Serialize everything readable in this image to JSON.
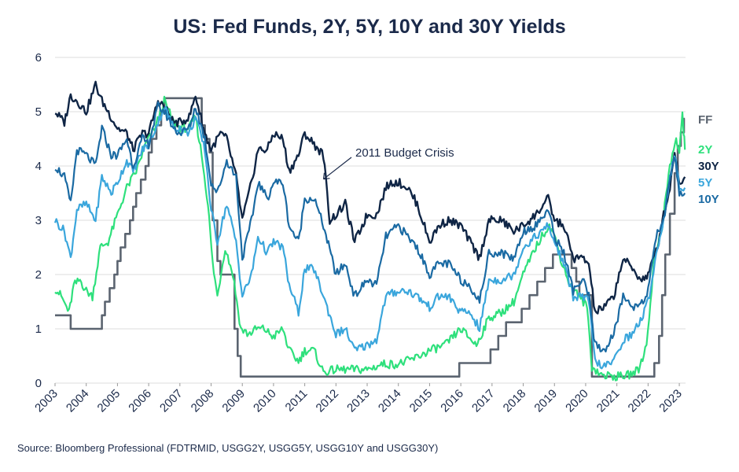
{
  "title": "US: Fed Funds, 2Y, 5Y, 10Y and 30Y Yields",
  "source": "Source: Bloomberg Professional (FDTRMID, USGG2Y, USGG5Y, USGG10Y and USGG30Y)",
  "colors": {
    "ff": "#5b6470",
    "y2": "#2ee07c",
    "y5": "#3aa6dc",
    "y10": "#1a6aa3",
    "y30": "#0f2545",
    "grid": "#dedede"
  },
  "chart_data": {
    "type": "line",
    "title": "US: Fed Funds, 2Y, 5Y, 10Y and 30Y Yields",
    "xlabel": "",
    "ylabel": "",
    "xlim": [
      2003,
      2023.2
    ],
    "ylim": [
      0,
      6
    ],
    "yticks": [
      0,
      1,
      2,
      3,
      4,
      5,
      6
    ],
    "xticks": [
      2003,
      2004,
      2005,
      2006,
      2007,
      2008,
      2009,
      2010,
      2011,
      2012,
      2013,
      2014,
      2015,
      2016,
      2017,
      2018,
      2019,
      2020,
      2021,
      2022,
      2023
    ],
    "grid": "horizontal",
    "series": [
      {
        "name": "FF",
        "key": "ff",
        "step": true,
        "x": [
          2003.0,
          2003.5,
          2004.5,
          2004.6,
          2004.75,
          2004.9,
          2005.0,
          2005.1,
          2005.25,
          2005.4,
          2005.5,
          2005.6,
          2005.75,
          2005.9,
          2006.0,
          2006.1,
          2006.25,
          2006.4,
          2006.5,
          2007.7,
          2007.8,
          2007.95,
          2008.05,
          2008.2,
          2008.3,
          2008.75,
          2008.85,
          2008.95,
          2015.95,
          2016.95,
          2017.2,
          2017.45,
          2017.95,
          2018.2,
          2018.45,
          2018.7,
          2018.95,
          2019.55,
          2019.7,
          2019.8,
          2020.2,
          2022.2,
          2022.35,
          2022.45,
          2022.55,
          2022.7,
          2022.85,
          2022.95,
          2023.05,
          2023.15
        ],
        "values": [
          1.25,
          1.0,
          1.25,
          1.5,
          1.75,
          2.0,
          2.25,
          2.5,
          2.75,
          3.0,
          3.25,
          3.5,
          3.75,
          4.0,
          4.25,
          4.5,
          4.75,
          5.0,
          5.25,
          4.75,
          4.5,
          4.25,
          3.0,
          2.25,
          2.0,
          1.0,
          0.5,
          0.12,
          0.37,
          0.62,
          0.87,
          1.12,
          1.37,
          1.62,
          1.87,
          2.12,
          2.37,
          2.12,
          1.87,
          1.62,
          0.12,
          0.37,
          0.87,
          1.62,
          2.37,
          3.12,
          3.87,
          4.37,
          4.62,
          4.87
        ]
      },
      {
        "name": "2Y",
        "key": "y2",
        "x": [
          2003.0,
          2003.2,
          2003.45,
          2003.6,
          2003.8,
          2004.0,
          2004.2,
          2004.45,
          2004.7,
          2005.0,
          2005.3,
          2005.6,
          2005.9,
          2006.2,
          2006.5,
          2006.8,
          2007.0,
          2007.3,
          2007.5,
          2007.7,
          2007.9,
          2008.05,
          2008.2,
          2008.45,
          2008.7,
          2008.95,
          2009.2,
          2009.45,
          2009.7,
          2010.0,
          2010.3,
          2010.5,
          2010.8,
          2011.0,
          2011.3,
          2011.6,
          2012.0,
          2012.5,
          2013.0,
          2013.5,
          2014.0,
          2014.5,
          2015.0,
          2015.5,
          2016.0,
          2016.5,
          2016.9,
          2017.3,
          2017.7,
          2018.0,
          2018.4,
          2018.8,
          2018.95,
          2019.2,
          2019.5,
          2019.8,
          2020.05,
          2020.2,
          2020.5,
          2021.0,
          2021.4,
          2021.7,
          2021.95,
          2022.2,
          2022.45,
          2022.7,
          2022.9,
          2023.0,
          2023.1,
          2023.18
        ],
        "values": [
          1.75,
          1.6,
          1.3,
          1.8,
          1.9,
          1.7,
          1.6,
          2.5,
          2.6,
          3.1,
          3.6,
          3.9,
          4.4,
          4.7,
          5.2,
          4.8,
          4.7,
          4.7,
          4.9,
          4.2,
          3.3,
          2.2,
          1.6,
          2.5,
          2.0,
          1.0,
          0.9,
          1.0,
          1.0,
          0.85,
          1.0,
          0.6,
          0.4,
          0.6,
          0.6,
          0.2,
          0.25,
          0.25,
          0.25,
          0.35,
          0.35,
          0.45,
          0.6,
          0.7,
          1.0,
          0.7,
          1.2,
          1.3,
          1.5,
          2.0,
          2.5,
          2.9,
          2.8,
          2.3,
          1.8,
          1.6,
          1.4,
          0.3,
          0.15,
          0.12,
          0.15,
          0.25,
          0.7,
          2.3,
          2.9,
          4.0,
          4.5,
          4.2,
          5.0,
          4.3
        ]
      },
      {
        "name": "30Y",
        "key": "y30",
        "x": [
          2003.0,
          2003.3,
          2003.5,
          2003.7,
          2004.0,
          2004.3,
          2004.5,
          2004.8,
          2005.0,
          2005.3,
          2005.5,
          2005.8,
          2006.0,
          2006.3,
          2006.5,
          2006.8,
          2007.0,
          2007.3,
          2007.5,
          2007.8,
          2008.0,
          2008.3,
          2008.5,
          2008.8,
          2009.0,
          2009.3,
          2009.5,
          2009.8,
          2010.0,
          2010.3,
          2010.5,
          2010.8,
          2011.0,
          2011.3,
          2011.6,
          2011.8,
          2012.0,
          2012.3,
          2012.6,
          2013.0,
          2013.3,
          2013.6,
          2013.8,
          2014.0,
          2014.3,
          2014.6,
          2015.0,
          2015.3,
          2015.6,
          2016.0,
          2016.3,
          2016.6,
          2016.9,
          2017.3,
          2017.7,
          2018.0,
          2018.4,
          2018.8,
          2019.0,
          2019.3,
          2019.6,
          2019.9,
          2020.1,
          2020.3,
          2020.6,
          2020.9,
          2021.2,
          2021.5,
          2021.8,
          2022.0,
          2022.3,
          2022.5,
          2022.7,
          2022.85,
          2023.0,
          2023.18
        ],
        "values": [
          5.0,
          4.8,
          5.3,
          5.2,
          5.0,
          5.5,
          5.2,
          4.9,
          4.7,
          4.6,
          4.3,
          4.6,
          4.6,
          5.2,
          5.1,
          4.8,
          4.8,
          4.9,
          5.3,
          4.6,
          4.3,
          4.6,
          4.5,
          3.8,
          3.0,
          3.7,
          4.3,
          4.3,
          4.6,
          4.5,
          3.9,
          4.2,
          4.6,
          4.4,
          4.2,
          3.0,
          3.1,
          3.3,
          2.6,
          3.1,
          3.1,
          3.6,
          3.7,
          3.7,
          3.6,
          3.3,
          2.6,
          2.9,
          3.0,
          2.9,
          2.6,
          2.3,
          3.0,
          3.0,
          2.8,
          2.9,
          3.1,
          3.4,
          3.0,
          2.9,
          2.3,
          2.3,
          2.2,
          1.3,
          1.4,
          1.6,
          2.3,
          2.1,
          1.9,
          2.0,
          2.5,
          3.1,
          3.6,
          4.3,
          3.7,
          3.8
        ]
      },
      {
        "name": "5Y",
        "key": "y5",
        "x": [
          2003.0,
          2003.3,
          2003.5,
          2003.7,
          2004.0,
          2004.3,
          2004.5,
          2004.8,
          2005.0,
          2005.3,
          2005.5,
          2005.8,
          2006.0,
          2006.3,
          2006.5,
          2006.8,
          2007.0,
          2007.3,
          2007.5,
          2007.8,
          2008.0,
          2008.2,
          2008.5,
          2008.8,
          2009.0,
          2009.3,
          2009.5,
          2009.8,
          2010.0,
          2010.3,
          2010.5,
          2010.8,
          2011.0,
          2011.3,
          2011.6,
          2012.0,
          2012.3,
          2012.6,
          2013.0,
          2013.3,
          2013.6,
          2014.0,
          2014.3,
          2014.6,
          2015.0,
          2015.3,
          2015.6,
          2016.0,
          2016.3,
          2016.6,
          2016.9,
          2017.3,
          2017.7,
          2018.0,
          2018.4,
          2018.8,
          2019.0,
          2019.3,
          2019.6,
          2019.9,
          2020.1,
          2020.3,
          2020.6,
          2020.9,
          2021.2,
          2021.5,
          2021.8,
          2022.0,
          2022.3,
          2022.5,
          2022.7,
          2022.85,
          2023.0,
          2023.18
        ],
        "values": [
          3.0,
          2.8,
          2.3,
          3.2,
          3.3,
          3.0,
          3.8,
          3.5,
          3.7,
          4.1,
          3.9,
          4.3,
          4.4,
          4.8,
          5.1,
          4.7,
          4.7,
          4.6,
          4.9,
          4.3,
          3.2,
          2.6,
          3.3,
          2.6,
          1.6,
          2.0,
          2.7,
          2.4,
          2.6,
          2.5,
          1.8,
          1.3,
          2.1,
          2.1,
          1.6,
          0.9,
          1.0,
          0.6,
          0.7,
          0.8,
          1.6,
          1.7,
          1.7,
          1.6,
          1.4,
          1.6,
          1.6,
          1.3,
          1.3,
          1.0,
          1.9,
          1.9,
          2.0,
          2.5,
          2.7,
          2.9,
          2.6,
          2.2,
          1.6,
          1.6,
          1.5,
          0.4,
          0.3,
          0.4,
          0.8,
          0.9,
          1.2,
          1.5,
          2.5,
          3.0,
          3.8,
          4.2,
          3.6,
          3.6
        ]
      },
      {
        "name": "10Y",
        "key": "y10",
        "x": [
          2003.0,
          2003.3,
          2003.5,
          2003.7,
          2004.0,
          2004.3,
          2004.5,
          2004.8,
          2005.0,
          2005.3,
          2005.5,
          2005.8,
          2006.0,
          2006.3,
          2006.5,
          2006.8,
          2007.0,
          2007.3,
          2007.5,
          2007.8,
          2008.0,
          2008.2,
          2008.5,
          2008.8,
          2009.0,
          2009.3,
          2009.5,
          2009.8,
          2010.0,
          2010.3,
          2010.5,
          2010.8,
          2011.0,
          2011.3,
          2011.6,
          2012.0,
          2012.3,
          2012.6,
          2013.0,
          2013.3,
          2013.6,
          2014.0,
          2014.3,
          2014.6,
          2015.0,
          2015.3,
          2015.6,
          2016.0,
          2016.3,
          2016.6,
          2016.9,
          2017.3,
          2017.7,
          2018.0,
          2018.4,
          2018.8,
          2019.0,
          2019.3,
          2019.6,
          2019.9,
          2020.1,
          2020.3,
          2020.6,
          2020.9,
          2021.2,
          2021.5,
          2021.8,
          2022.0,
          2022.3,
          2022.5,
          2022.7,
          2022.85,
          2023.0,
          2023.18
        ],
        "values": [
          4.0,
          3.8,
          3.3,
          4.3,
          4.2,
          4.0,
          4.7,
          4.2,
          4.2,
          4.5,
          4.0,
          4.5,
          4.4,
          5.1,
          5.0,
          4.7,
          4.6,
          4.7,
          5.1,
          4.5,
          3.7,
          3.5,
          4.1,
          3.8,
          2.3,
          3.0,
          3.7,
          3.4,
          3.7,
          3.7,
          2.9,
          2.6,
          3.4,
          3.4,
          2.9,
          2.0,
          2.2,
          1.6,
          1.9,
          1.8,
          2.7,
          2.9,
          2.7,
          2.5,
          2.0,
          2.2,
          2.2,
          1.9,
          1.8,
          1.5,
          2.4,
          2.4,
          2.3,
          2.8,
          2.9,
          3.2,
          2.7,
          2.4,
          1.7,
          1.9,
          1.6,
          0.7,
          0.6,
          0.9,
          1.6,
          1.4,
          1.5,
          1.7,
          2.8,
          3.0,
          3.8,
          4.2,
          3.5,
          3.5
        ]
      }
    ],
    "series_labels": [
      "FF",
      "2Y",
      "30Y",
      "5Y",
      "10Y"
    ],
    "annotations": [
      {
        "text": "2011 Budget Crisis",
        "x": 2011.5,
        "y": 3.7
      }
    ]
  }
}
